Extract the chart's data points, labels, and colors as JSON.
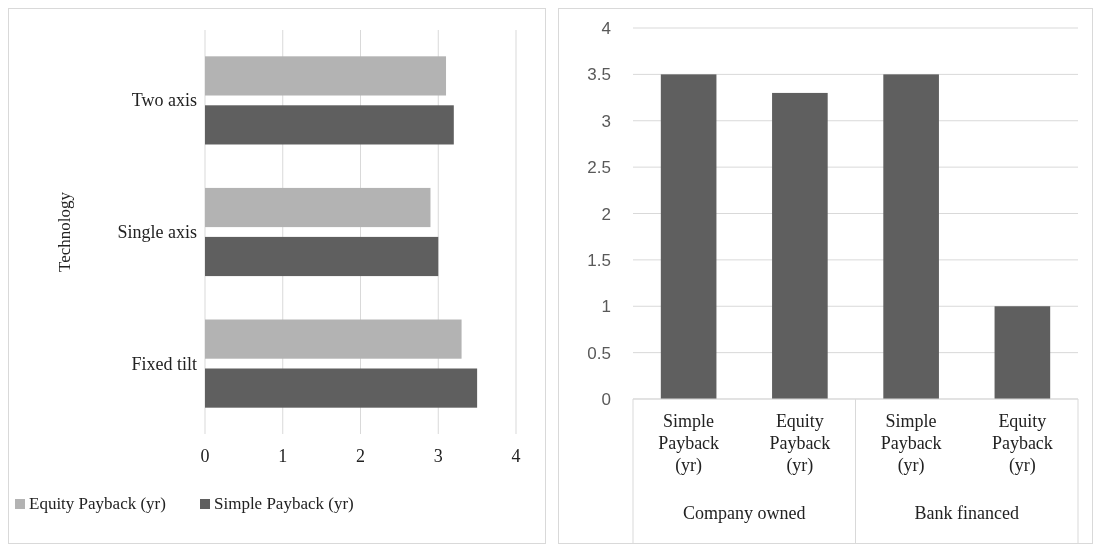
{
  "chart_data": [
    {
      "type": "bar",
      "orientation": "horizontal",
      "ylabel": "Technology",
      "categories": [
        "Two axis",
        "Single axis",
        "Fixed tilt"
      ],
      "series": [
        {
          "name": "Equity Payback (yr)",
          "color": "#b3b3b3",
          "values": [
            3.1,
            2.9,
            3.3
          ]
        },
        {
          "name": "Simple Payback (yr)",
          "color": "#5f5f5f",
          "values": [
            3.2,
            3.0,
            3.5
          ]
        }
      ],
      "xlim": [
        0,
        4
      ],
      "xticks": [
        0,
        1,
        2,
        3,
        4
      ],
      "grid": "x",
      "legend": "bottom"
    },
    {
      "type": "bar",
      "categories": [
        "Simple Payback (yr)",
        "Equity Payback (yr)",
        "Simple Payback (yr)",
        "Equity Payback (yr)"
      ],
      "series": [
        {
          "color": "#5f5f5f",
          "values": [
            3.5,
            3.3,
            3.5,
            1.0
          ]
        }
      ],
      "annotations": [
        "Company owned",
        "Bank financed"
      ],
      "ylim": [
        0,
        4
      ],
      "yticks": [
        0,
        0.5,
        1,
        1.5,
        2,
        2.5,
        3,
        3.5,
        4
      ],
      "grid": "y"
    }
  ]
}
